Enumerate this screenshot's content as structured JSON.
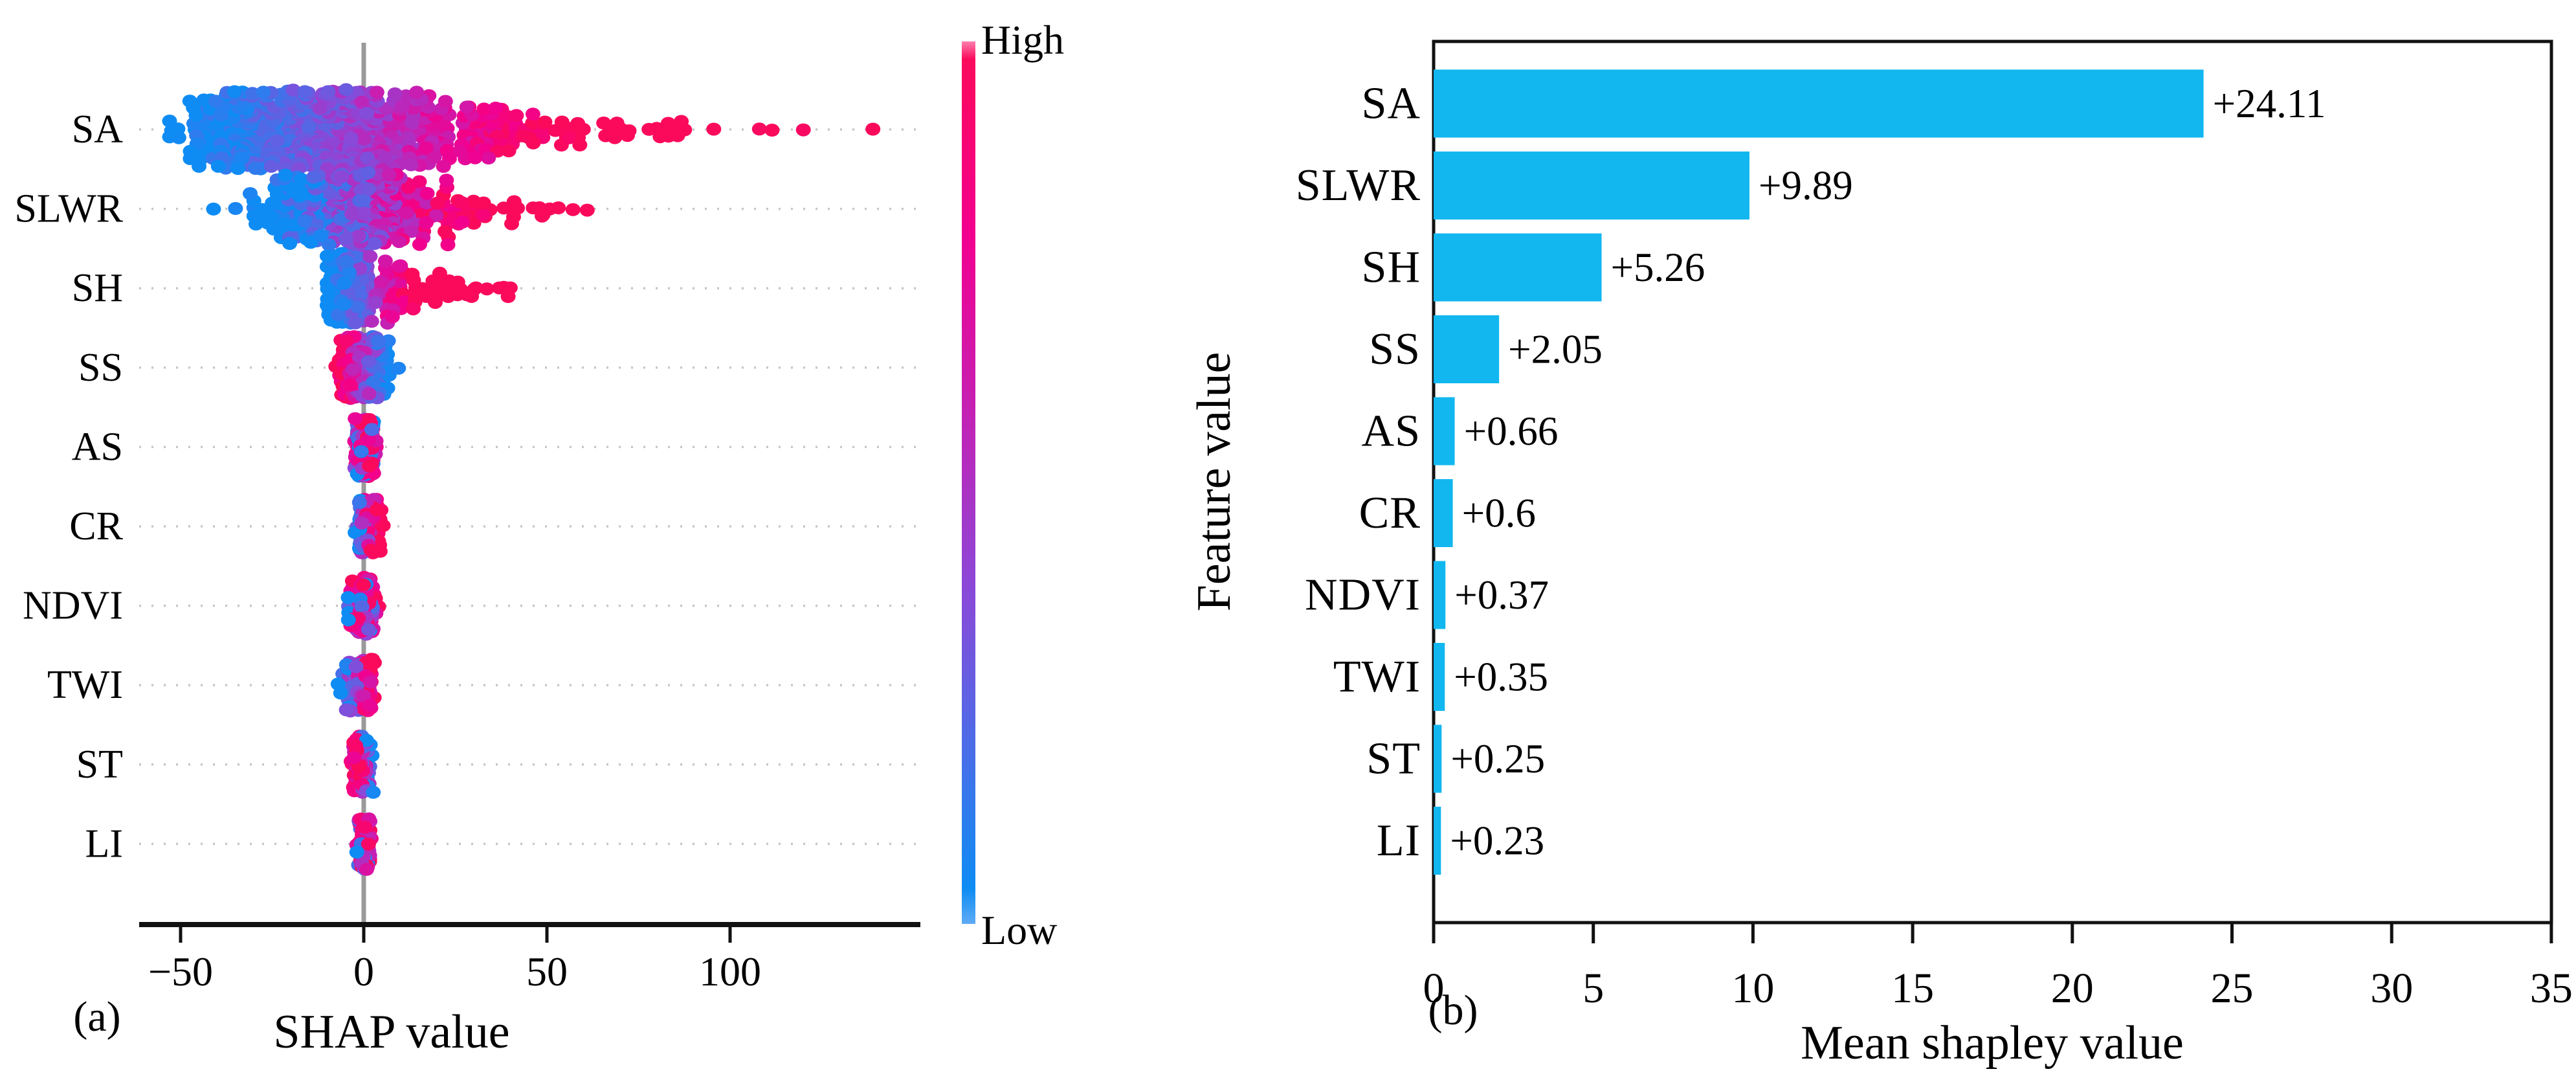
{
  "figure": {
    "panel_a_tag": "(a)",
    "panel_b_tag": "(b)",
    "colors": {
      "bar_cyan": "#12b7ef",
      "value_text_cyan": "#15b4ef",
      "axis_black": "#111111",
      "zero_line_gray": "#9a9a9a",
      "gridline_gray": "#c6c6c6",
      "colormap_low_blue": "#0e8cf4",
      "colormap_mid_purple": "#8b48d8",
      "colormap_mid_magenta": "#c421b4",
      "colormap_high_red": "#fb0a5c"
    }
  },
  "chart_data": [
    {
      "type": "scatter",
      "subtype": "shap-beeswarm",
      "xlabel": "SHAP value",
      "xlim": [
        -61,
        152
      ],
      "x_ticks": [
        {
          "v": -50,
          "label": "−50"
        },
        {
          "v": 0,
          "label": "0"
        },
        {
          "v": 50,
          "label": "50"
        },
        {
          "v": 100,
          "label": "100"
        }
      ],
      "features": [
        "SA",
        "SLWR",
        "SH",
        "SS",
        "AS",
        "CR",
        "NDVI",
        "TWI",
        "ST",
        "LI"
      ],
      "colorbar": {
        "high_label": "High",
        "low_label": "Low"
      },
      "grid": "dotted-rows",
      "zero_line": true,
      "swarms": [
        {
          "feature": "SA",
          "n": 660,
          "range": [
            -53,
            128
          ],
          "max_half": 62,
          "components": [
            {
              "m": -26,
              "s": 11,
              "w": 0.4
            },
            {
              "m": -10,
              "s": 6,
              "w": 0.18
            },
            {
              "m": 1,
              "s": 4,
              "w": 0.14
            },
            {
              "m": 14,
              "s": 9,
              "w": 0.13
            },
            {
              "m": 34,
              "s": 13,
              "w": 0.1
            },
            {
              "m": 70,
              "s": 20,
              "w": 0.05
            }
          ],
          "color": {
            "mode": "pos",
            "lo": -45,
            "hi": 52,
            "noise": 0.12
          },
          "outliers": [
            {
              "x": 139,
              "t": 1
            },
            {
              "x": 120,
              "t": 0.97
            },
            {
              "x": 108,
              "t": 0.98
            }
          ]
        },
        {
          "feature": "SLWR",
          "n": 400,
          "range": [
            -30,
            62
          ],
          "max_half": 56,
          "components": [
            {
              "m": -13,
              "s": 8,
              "w": 0.38
            },
            {
              "m": -1,
              "s": 5,
              "w": 0.3
            },
            {
              "m": 9,
              "s": 7,
              "w": 0.18
            },
            {
              "m": 24,
              "s": 10,
              "w": 0.12
            },
            {
              "m": 50,
              "s": 6,
              "w": 0.02
            }
          ],
          "color": {
            "mode": "pos",
            "lo": -22,
            "hi": 28,
            "noise": 0.22
          },
          "outliers": [
            {
              "x": -41,
              "t": 0
            },
            {
              "x": -35,
              "t": 0.04
            },
            {
              "x": -31,
              "t": 0.05
            },
            {
              "x": 61,
              "t": 1
            }
          ]
        },
        {
          "feature": "SH",
          "n": 310,
          "range": [
            -10,
            41
          ],
          "max_half": 54,
          "components": [
            {
              "m": -4.5,
              "s": 2.3,
              "w": 0.6
            },
            {
              "m": -0.5,
              "s": 1.5,
              "w": 0.15
            },
            {
              "m": 7,
              "s": 4.5,
              "w": 0.15
            },
            {
              "m": 20,
              "s": 8,
              "w": 0.1
            }
          ],
          "color": {
            "mode": "pos",
            "lo": -7.5,
            "hi": 13,
            "noise": 0.15
          },
          "outliers": [
            {
              "x": 40,
              "t": 1
            },
            {
              "x": 37,
              "t": 1
            }
          ]
        },
        {
          "feature": "SS",
          "n": 210,
          "range": [
            -8.5,
            10
          ],
          "max_half": 48,
          "components": [
            {
              "m": -3.2,
              "s": 1.9,
              "w": 0.55
            },
            {
              "m": 2.4,
              "s": 2.1,
              "w": 0.45
            }
          ],
          "color": {
            "mode": "neg",
            "lo": -6.5,
            "hi": 6,
            "noise": 0.2
          },
          "outliers": [
            {
              "x": 9.5,
              "t": 0.05
            }
          ]
        },
        {
          "feature": "AS",
          "n": 150,
          "range": [
            -4,
            5
          ],
          "max_half": 46,
          "components": [
            {
              "m": -0.6,
              "s": 1.1,
              "w": 0.55
            },
            {
              "m": 1.6,
              "s": 1.2,
              "w": 0.45
            }
          ],
          "color": {
            "mode": "mix",
            "hi_frac": 0.5,
            "noise": 0.2
          },
          "outliers": []
        },
        {
          "feature": "CR",
          "n": 145,
          "range": [
            -3,
            6.5
          ],
          "max_half": 42,
          "components": [
            {
              "m": -0.2,
              "s": 0.9,
              "w": 0.6
            },
            {
              "m": 2.3,
              "s": 1.4,
              "w": 0.4
            }
          ],
          "color": {
            "mode": "pos",
            "lo": -2,
            "hi": 3,
            "noise": 0.38
          },
          "outliers": []
        },
        {
          "feature": "NDVI",
          "n": 135,
          "range": [
            -5,
            5.5
          ],
          "max_half": 44,
          "components": [
            {
              "m": 0.3,
              "s": 1.0,
              "w": 0.8
            },
            {
              "m": -3.2,
              "s": 0.8,
              "w": 0.08
            },
            {
              "m": 2.6,
              "s": 1.0,
              "w": 0.12
            }
          ],
          "color": {
            "mode": "mix",
            "hi_frac": 0.72,
            "noise": 0.2
          },
          "outliers": [
            {
              "x": -4.2,
              "t": 0
            }
          ]
        },
        {
          "feature": "TWI",
          "n": 135,
          "range": [
            -7.5,
            4
          ],
          "max_half": 40,
          "components": [
            {
              "m": -1.8,
              "s": 1.9,
              "w": 0.5
            },
            {
              "m": 0.8,
              "s": 1.1,
              "w": 0.5
            }
          ],
          "color": {
            "mode": "pos",
            "lo": -5.5,
            "hi": 2.2,
            "noise": 0.3
          },
          "outliers": [
            {
              "x": -7,
              "t": 0
            },
            {
              "x": -6.3,
              "t": 0
            }
          ]
        },
        {
          "feature": "ST",
          "n": 115,
          "range": [
            -3.5,
            3.5
          ],
          "max_half": 44,
          "components": [
            {
              "m": -0.2,
              "s": 1.0,
              "w": 0.7
            },
            {
              "m": -1.6,
              "s": 0.8,
              "w": 0.3
            }
          ],
          "color": {
            "mode": "neg",
            "lo": -2.5,
            "hi": 2.2,
            "noise": 0.4
          },
          "outliers": [
            {
              "x": 2.6,
              "t": 0.03
            }
          ]
        },
        {
          "feature": "LI",
          "n": 95,
          "range": [
            -2.5,
            2.5
          ],
          "max_half": 40,
          "components": [
            {
              "m": 0.2,
              "s": 0.75,
              "w": 1.0
            }
          ],
          "color": {
            "mode": "mix",
            "hi_frac": 0.7,
            "noise": 0.2
          },
          "outliers": [
            {
              "x": -1.9,
              "t": 0
            },
            {
              "x": 1.3,
              "t": 0.96
            }
          ]
        }
      ]
    },
    {
      "type": "bar",
      "orientation": "horizontal",
      "xlabel": "Mean shapley value",
      "ylabel": "Feature value",
      "categories": [
        "SA",
        "SLWR",
        "SH",
        "SS",
        "AS",
        "CR",
        "NDVI",
        "TWI",
        "ST",
        "LI"
      ],
      "values": [
        24.11,
        9.89,
        5.26,
        2.05,
        0.66,
        0.6,
        0.37,
        0.35,
        0.25,
        0.23
      ],
      "value_labels": [
        "+24.11",
        "+9.89",
        "+5.26",
        "+2.05",
        "+0.66",
        "+0.6",
        "+0.37",
        "+0.35",
        "+0.25",
        "+0.23"
      ],
      "x_ticks": [
        {
          "v": 0,
          "label": "0"
        },
        {
          "v": 5,
          "label": "5"
        },
        {
          "v": 10,
          "label": "10"
        },
        {
          "v": 15,
          "label": "15"
        },
        {
          "v": 20,
          "label": "20"
        },
        {
          "v": 25,
          "label": "25"
        },
        {
          "v": 30,
          "label": "30"
        },
        {
          "v": 35,
          "label": "35"
        }
      ],
      "xlim": [
        0,
        35
      ],
      "grid": "off",
      "bar_color": "#12b7ef",
      "legend": "none"
    }
  ]
}
